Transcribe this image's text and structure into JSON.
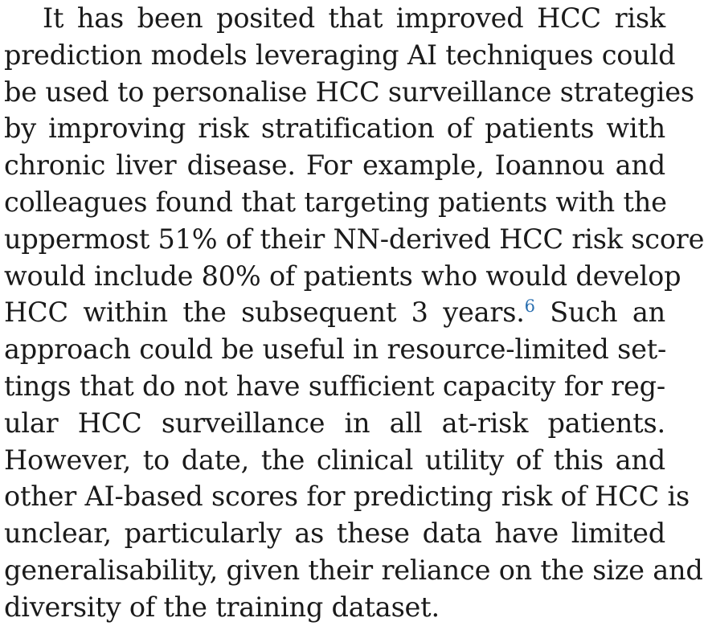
{
  "paragraph": {
    "lines": [
      "It has been posited that improved HCC risk",
      "prediction models leveraging AI techniques could",
      "be used to personalise HCC surveillance strategies",
      "by improving risk stratification of patients with",
      "chronic liver disease. For example, Ioannou and",
      "colleagues found that targeting patients with the",
      "uppermost 51% of their NN-derived HCC risk score",
      "would include 80% of patients who would develop",
      "HCC within the subsequent 3 years.",
      "approach could be useful in resource-limited set-",
      "tings that do not have sufficient capacity for reg-",
      "ular HCC surveillance in all at-risk patients.",
      "However, to date, the clinical utility of this and",
      "other AI-based scores for predicting risk of HCC is",
      "unclear, particularly as these data have limited",
      "generalisability, given their reliance on the size and",
      "diversity of the training dataset."
    ],
    "citation": "6",
    "line9_tail": " Such an"
  }
}
